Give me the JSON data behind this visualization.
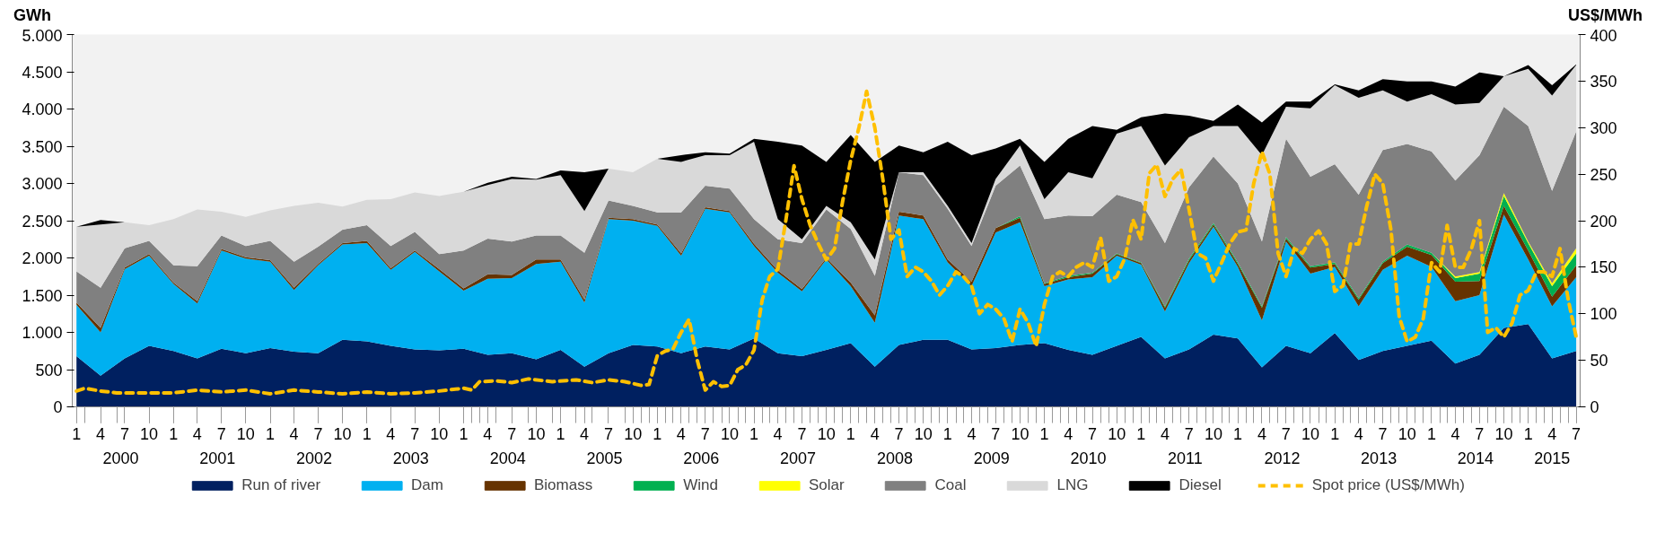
{
  "chart_data": {
    "type": "area",
    "stacked": true,
    "ylabel": "GWh",
    "y2label": "US$/MWh",
    "legend": "bottom",
    "x": [
      "2000-01",
      "2000-04",
      "2000-07",
      "2000-10",
      "2001-01",
      "2001-04",
      "2001-07",
      "2001-10",
      "2002-01",
      "2002-04",
      "2002-07",
      "2002-10",
      "2003-01",
      "2003-04",
      "2003-07",
      "2003-10",
      "2004-01",
      "2004-04",
      "2004-07",
      "2004-10",
      "2005-01",
      "2005-04",
      "2005-07",
      "2005-10",
      "2006-01",
      "2006-04",
      "2006-07",
      "2006-10",
      "2007-01",
      "2007-04",
      "2007-07",
      "2007-10",
      "2008-01",
      "2008-04",
      "2008-07",
      "2008-10",
      "2009-01",
      "2009-04",
      "2009-07",
      "2009-10",
      "2010-01",
      "2010-04",
      "2010-07",
      "2010-10",
      "2011-01",
      "2011-04",
      "2011-07",
      "2011-10",
      "2012-01",
      "2012-04",
      "2012-07",
      "2012-10",
      "2013-01",
      "2013-04",
      "2013-07",
      "2013-10",
      "2014-01",
      "2014-04",
      "2014-07",
      "2014-10",
      "2015-01",
      "2015-04",
      "2015-07"
    ],
    "xlim": [
      "1999-12-16",
      "2015-07-16"
    ],
    "xticks": [
      {
        "value": "2000-01",
        "label": "1"
      },
      {
        "value": "2000-04",
        "label": "4"
      },
      {
        "value": "2000-07",
        "label": "7"
      },
      {
        "value": "2000-10",
        "label": "10"
      },
      {
        "value": "2001-01",
        "label": "1"
      },
      {
        "value": "2001-04",
        "label": "4"
      },
      {
        "value": "2001-07",
        "label": "7"
      },
      {
        "value": "2001-10",
        "label": "10"
      },
      {
        "value": "2002-01",
        "label": "1"
      },
      {
        "value": "2002-04",
        "label": "4"
      },
      {
        "value": "2002-07",
        "label": "7"
      },
      {
        "value": "2002-10",
        "label": "10"
      },
      {
        "value": "2003-01",
        "label": "1"
      },
      {
        "value": "2003-04",
        "label": "4"
      },
      {
        "value": "2003-07",
        "label": "7"
      },
      {
        "value": "2003-10",
        "label": "10"
      },
      {
        "value": "2004-01",
        "label": "1"
      },
      {
        "value": "2004-04",
        "label": "4"
      },
      {
        "value": "2004-07",
        "label": "7"
      },
      {
        "value": "2004-10",
        "label": "10"
      },
      {
        "value": "2005-01",
        "label": "1"
      },
      {
        "value": "2005-04",
        "label": "4"
      },
      {
        "value": "2005-07",
        "label": "7"
      },
      {
        "value": "2005-10",
        "label": "10"
      },
      {
        "value": "2006-01",
        "label": "1"
      },
      {
        "value": "2006-04",
        "label": "4"
      },
      {
        "value": "2006-07",
        "label": "7"
      },
      {
        "value": "2006-10",
        "label": "10"
      },
      {
        "value": "2007-01",
        "label": "1"
      },
      {
        "value": "2007-04",
        "label": "4"
      },
      {
        "value": "2007-07",
        "label": "7"
      },
      {
        "value": "2007-10",
        "label": "10"
      },
      {
        "value": "2008-01",
        "label": "1"
      },
      {
        "value": "2008-04",
        "label": "4"
      },
      {
        "value": "2008-07",
        "label": "7"
      },
      {
        "value": "2008-10",
        "label": "10"
      },
      {
        "value": "2009-01",
        "label": "1"
      },
      {
        "value": "2009-04",
        "label": "4"
      },
      {
        "value": "2009-07",
        "label": "7"
      },
      {
        "value": "2009-10",
        "label": "10"
      },
      {
        "value": "2010-01",
        "label": "1"
      },
      {
        "value": "2010-04",
        "label": "4"
      },
      {
        "value": "2010-07",
        "label": "7"
      },
      {
        "value": "2010-10",
        "label": "10"
      },
      {
        "value": "2011-01",
        "label": "1"
      },
      {
        "value": "2011-04",
        "label": "4"
      },
      {
        "value": "2011-07",
        "label": "7"
      },
      {
        "value": "2011-10",
        "label": "10"
      },
      {
        "value": "2012-01",
        "label": "1"
      },
      {
        "value": "2012-04",
        "label": "4"
      },
      {
        "value": "2012-07",
        "label": "7"
      },
      {
        "value": "2012-10",
        "label": "10"
      },
      {
        "value": "2013-01",
        "label": "1"
      },
      {
        "value": "2013-04",
        "label": "4"
      },
      {
        "value": "2013-07",
        "label": "7"
      },
      {
        "value": "2013-10",
        "label": "10"
      },
      {
        "value": "2014-01",
        "label": "1"
      },
      {
        "value": "2014-04",
        "label": "4"
      },
      {
        "value": "2014-07",
        "label": "7"
      },
      {
        "value": "2014-10",
        "label": "10"
      },
      {
        "value": "2015-01",
        "label": "1"
      },
      {
        "value": "2015-04",
        "label": "4"
      },
      {
        "value": "2015-07",
        "label": "7"
      }
    ],
    "x2lim": [
      "1999-12-16",
      "2015-07-16"
    ],
    "x2ticks": [
      {
        "value": "2000-06-16",
        "label": "2000"
      },
      {
        "value": "2001-06-16",
        "label": "2001"
      },
      {
        "value": "2002-06-16",
        "label": "2002"
      },
      {
        "value": "2003-06-16",
        "label": "2003"
      },
      {
        "value": "2004-06-16",
        "label": "2004"
      },
      {
        "value": "2005-06-16",
        "label": "2005"
      },
      {
        "value": "2006-06-16",
        "label": "2006"
      },
      {
        "value": "2007-06-16",
        "label": "2007"
      },
      {
        "value": "2008-06-16",
        "label": "2008"
      },
      {
        "value": "2009-06-16",
        "label": "2009"
      },
      {
        "value": "2010-06-16",
        "label": "2010"
      },
      {
        "value": "2011-06-16",
        "label": "2011"
      },
      {
        "value": "2012-06-16",
        "label": "2012"
      },
      {
        "value": "2013-06-16",
        "label": "2013"
      },
      {
        "value": "2014-06-16",
        "label": "2014"
      },
      {
        "value": "2015-04-01",
        "label": "2015"
      }
    ],
    "ylim": [
      0,
      5000
    ],
    "yticks": [
      0,
      500,
      {
        "value": 1000,
        "label": "1.000"
      },
      {
        "value": 1500,
        "label": "1.500"
      },
      {
        "value": 2000,
        "label": "2.000"
      },
      {
        "value": 2500,
        "label": "2.500"
      },
      {
        "value": 3000,
        "label": "3.000"
      },
      {
        "value": 3500,
        "label": "3.500"
      },
      {
        "value": 4000,
        "label": "4.000"
      },
      {
        "value": 4500,
        "label": "4.500"
      },
      {
        "value": 5000,
        "label": "5.000"
      }
    ],
    "y2lim": [
      0,
      400
    ],
    "y2ticks": [
      0,
      50,
      100,
      150,
      200,
      250,
      300,
      350,
      400
    ],
    "series": [
      {
        "name": "Run of river",
        "color": "#002060",
        "values": [
          680,
          420,
          650,
          820,
          750,
          650,
          780,
          720,
          790,
          740,
          720,
          900,
          880,
          820,
          770,
          760,
          780,
          700,
          720,
          640,
          765,
          540,
          720,
          830,
          810,
          720,
          810,
          770,
          920,
          720,
          680,
          765,
          855,
          540,
          830,
          900,
          900,
          770,
          790,
          830,
          855,
          765,
          700,
          820,
          940,
          650,
          770,
          970,
          920,
          530,
          820,
          720,
          990,
          630,
          750,
          820,
          890,
          580,
          700,
          1060,
          1110,
          650,
          750
        ]
      },
      {
        "name": "Dam",
        "color": "#00b0f0",
        "values": [
          690,
          580,
          1200,
          1210,
          900,
          740,
          1320,
          1270,
          1160,
          830,
          1180,
          1280,
          1320,
          1020,
          1310,
          1060,
          780,
          1020,
          1010,
          1280,
          1185,
          860,
          1800,
          1670,
          1620,
          1310,
          1850,
          1840,
          1240,
          1080,
          870,
          1215,
          765,
          590,
          1740,
          1620,
          1040,
          850,
          1550,
          1650,
          765,
          945,
          1040,
          1210,
          970,
          630,
          1160,
          1450,
          960,
          630,
          1400,
          1070,
          890,
          720,
          1090,
          1210,
          990,
          840,
          800,
          1520,
          870,
          700,
          990
        ]
      },
      {
        "name": "Biomass",
        "color": "#663300",
        "values": [
          30,
          60,
          20,
          20,
          20,
          30,
          20,
          20,
          20,
          30,
          20,
          20,
          30,
          20,
          20,
          30,
          30,
          60,
          40,
          60,
          30,
          40,
          20,
          20,
          20,
          30,
          20,
          20,
          30,
          30,
          30,
          20,
          50,
          100,
          50,
          50,
          40,
          60,
          60,
          60,
          30,
          30,
          50,
          20,
          20,
          50,
          40,
          30,
          40,
          170,
          40,
          80,
          40,
          90,
          90,
          120,
          160,
          260,
          190,
          120,
          120,
          130,
          160
        ]
      },
      {
        "name": "Wind",
        "color": "#00b050",
        "values": [
          0,
          0,
          0,
          0,
          0,
          0,
          0,
          0,
          0,
          0,
          0,
          0,
          0,
          0,
          0,
          0,
          0,
          0,
          0,
          0,
          0,
          0,
          0,
          0,
          0,
          0,
          0,
          0,
          0,
          0,
          0,
          0,
          0,
          0,
          0,
          0,
          0,
          0,
          0,
          20,
          10,
          20,
          10,
          10,
          10,
          20,
          20,
          20,
          20,
          20,
          20,
          20,
          20,
          20,
          20,
          30,
          30,
          50,
          100,
          130,
          100,
          140,
          160
        ]
      },
      {
        "name": "Solar",
        "color": "#ffff00",
        "values": [
          0,
          0,
          0,
          0,
          0,
          0,
          0,
          0,
          0,
          0,
          0,
          0,
          0,
          0,
          0,
          0,
          0,
          0,
          0,
          0,
          0,
          0,
          0,
          0,
          0,
          0,
          0,
          0,
          0,
          0,
          0,
          0,
          0,
          0,
          0,
          0,
          0,
          0,
          0,
          0,
          0,
          0,
          0,
          0,
          0,
          0,
          0,
          0,
          0,
          0,
          0,
          0,
          0,
          0,
          0,
          0,
          0,
          20,
          20,
          40,
          20,
          40,
          70
        ]
      },
      {
        "name": "Coal",
        "color": "#808080",
        "values": [
          420,
          540,
          260,
          180,
          230,
          470,
          180,
          150,
          260,
          350,
          230,
          180,
          210,
          300,
          250,
          200,
          510,
          480,
          450,
          320,
          320,
          630,
          230,
          180,
          160,
          550,
          290,
          300,
          330,
          420,
          620,
          650,
          720,
          530,
          530,
          540,
          680,
          480,
          570,
          680,
          860,
          810,
          760,
          790,
          810,
          850,
          960,
          890,
          1060,
          870,
          1320,
          1200,
          1320,
          1390,
          1500,
          1350,
          1360,
          1290,
          1570,
          1160,
          1550,
          1240,
          1570
        ]
      },
      {
        "name": "LNG",
        "color": "#d9d9d9",
        "values": [
          600,
          850,
          350,
          210,
          620,
          760,
          320,
          390,
          410,
          750,
          590,
          310,
          340,
          630,
          530,
          780,
          790,
          720,
          840,
          750,
          810,
          560,
          430,
          450,
          720,
          680,
          410,
          450,
          1040,
          270,
          50,
          50,
          90,
          220,
          0,
          40,
          40,
          40,
          90,
          270,
          270,
          580,
          510,
          820,
          1020,
          1040,
          670,
          410,
          770,
          1160,
          430,
          920,
          1060,
          1300,
          800,
          570,
          770,
          1020,
          700,
          410,
          770,
          1280,
          890
        ]
      },
      {
        "name": "Diesel",
        "color": "#000000",
        "values": [
          0,
          60,
          0,
          0,
          0,
          0,
          0,
          0,
          0,
          0,
          0,
          0,
          0,
          0,
          0,
          0,
          0,
          30,
          30,
          10,
          65,
          520,
          0,
          0,
          0,
          90,
          40,
          20,
          40,
          1040,
          1260,
          590,
          1170,
          1310,
          360,
          270,
          860,
          1180,
          410,
          90,
          500,
          450,
          700,
          50,
          120,
          700,
          290,
          70,
          290,
          440,
          70,
          90,
          10,
          100,
          150,
          270,
          170,
          240,
          410,
          0,
          50,
          140,
          10
        ]
      },
      {
        "name": "Spot price (US$/MWh)",
        "type": "line",
        "axis": "y2",
        "color": "#ffc000",
        "line_style": "dashed",
        "x": [
          "2000-01",
          "2000-02",
          "2000-04",
          "2000-06",
          "2000-10",
          "2001-01",
          "2001-04",
          "2001-07",
          "2001-10",
          "2002-01",
          "2002-04",
          "2002-07",
          "2002-10",
          "2003-01",
          "2003-04",
          "2003-07",
          "2003-10",
          "2004-01",
          "2004-02",
          "2004-03",
          "2004-05",
          "2004-07",
          "2004-09",
          "2004-12",
          "2005-03",
          "2005-05",
          "2005-07",
          "2005-09",
          "2005-11",
          "2005-12",
          "2006-01",
          "2006-02",
          "2006-03",
          "2006-04",
          "2006-05",
          "2006-06",
          "2006-07",
          "2006-08",
          "2006-09",
          "2006-10",
          "2006-11",
          "2006-12",
          "2007-01",
          "2007-02",
          "2007-03",
          "2007-04",
          "2007-05",
          "2007-06",
          "2007-07",
          "2007-08",
          "2007-09",
          "2007-10",
          "2007-11",
          "2007-12",
          "2008-01",
          "2008-02",
          "2008-03",
          "2008-04",
          "2008-05",
          "2008-06",
          "2008-07",
          "2008-08",
          "2008-09",
          "2008-10",
          "2008-11",
          "2008-12",
          "2009-01",
          "2009-02",
          "2009-03",
          "2009-04",
          "2009-05",
          "2009-06",
          "2009-07",
          "2009-08",
          "2009-09",
          "2009-10",
          "2009-11",
          "2009-12",
          "2010-01",
          "2010-02",
          "2010-03",
          "2010-04",
          "2010-05",
          "2010-06",
          "2010-07",
          "2010-08",
          "2010-09",
          "2010-10",
          "2010-11",
          "2010-12",
          "2011-01",
          "2011-02",
          "2011-03",
          "2011-04",
          "2011-05",
          "2011-06",
          "2011-07",
          "2011-08",
          "2011-09",
          "2011-10",
          "2011-11",
          "2011-12",
          "2012-01",
          "2012-02",
          "2012-03",
          "2012-04",
          "2012-05",
          "2012-06",
          "2012-07",
          "2012-08",
          "2012-09",
          "2012-10",
          "2012-11",
          "2012-12",
          "2013-01",
          "2013-02",
          "2013-03",
          "2013-04",
          "2013-05",
          "2013-06",
          "2013-07",
          "2013-08",
          "2013-09",
          "2013-10",
          "2013-11",
          "2013-12",
          "2014-01",
          "2014-02",
          "2014-03",
          "2014-04",
          "2014-05",
          "2014-06",
          "2014-07",
          "2014-08",
          "2014-09",
          "2014-10",
          "2014-11",
          "2014-12",
          "2015-01",
          "2015-02",
          "2015-03",
          "2015-04",
          "2015-05",
          "2015-06",
          "2015-07"
        ],
        "values": [
          17,
          20,
          17,
          15,
          15,
          15,
          18,
          16,
          18,
          14,
          18,
          16,
          14,
          16,
          14,
          15,
          17,
          20,
          18,
          27,
          28,
          26,
          30,
          27,
          29,
          26,
          29,
          27,
          23,
          24,
          55,
          60,
          62,
          80,
          94,
          50,
          18,
          27,
          22,
          23,
          40,
          45,
          61,
          115,
          140,
          148,
          200,
          259,
          223,
          195,
          175,
          158,
          170,
          220,
          265,
          300,
          339,
          300,
          245,
          180,
          190,
          140,
          150,
          145,
          135,
          120,
          130,
          145,
          140,
          130,
          100,
          110,
          105,
          95,
          70,
          105,
          90,
          65,
          110,
          140,
          145,
          140,
          150,
          155,
          150,
          182,
          135,
          140,
          160,
          201,
          180,
          251,
          260,
          226,
          245,
          255,
          212,
          165,
          160,
          135,
          155,
          175,
          188,
          190,
          240,
          274,
          250,
          165,
          140,
          170,
          165,
          180,
          189,
          175,
          124,
          130,
          175,
          175,
          215,
          250,
          240,
          190,
          97,
          70,
          75,
          95,
          155,
          145,
          195,
          150,
          150,
          170,
          200,
          80,
          85,
          75,
          90,
          120,
          125,
          145,
          145,
          140,
          170,
          115,
          75
        ]
      }
    ]
  }
}
